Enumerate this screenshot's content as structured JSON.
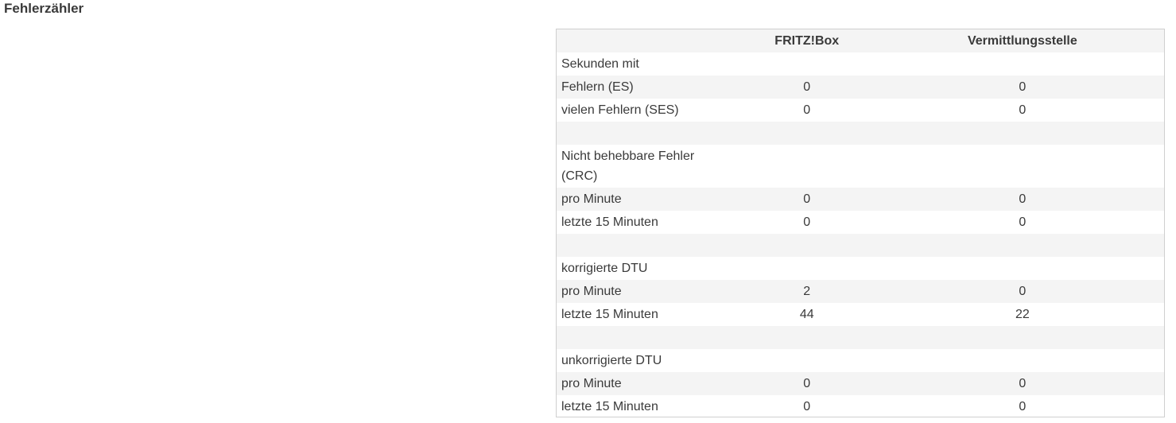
{
  "section_title": "Fehlerzähler",
  "columns": {
    "fritzbox": "FRITZ!Box",
    "vermittlungsstelle": "Vermittlungsstelle"
  },
  "rows": [
    {
      "label": "Sekunden mit",
      "fritzbox": "",
      "vermittlungsstelle": ""
    },
    {
      "label": "Fehlern (ES)",
      "fritzbox": "0",
      "vermittlungsstelle": "0"
    },
    {
      "label": "vielen Fehlern (SES)",
      "fritzbox": "0",
      "vermittlungsstelle": "0"
    },
    {
      "label": "",
      "fritzbox": "",
      "vermittlungsstelle": ""
    },
    {
      "label": "Nicht behebbare Fehler (CRC)",
      "fritzbox": "",
      "vermittlungsstelle": ""
    },
    {
      "label": "pro Minute",
      "fritzbox": "0",
      "vermittlungsstelle": "0"
    },
    {
      "label": "letzte 15 Minuten",
      "fritzbox": "0",
      "vermittlungsstelle": "0"
    },
    {
      "label": "",
      "fritzbox": "",
      "vermittlungsstelle": ""
    },
    {
      "label": "korrigierte DTU",
      "fritzbox": "",
      "vermittlungsstelle": ""
    },
    {
      "label": "pro Minute",
      "fritzbox": "2",
      "vermittlungsstelle": "0"
    },
    {
      "label": "letzte 15 Minuten",
      "fritzbox": "44",
      "vermittlungsstelle": "22"
    },
    {
      "label": "",
      "fritzbox": "",
      "vermittlungsstelle": ""
    },
    {
      "label": "unkorrigierte DTU",
      "fritzbox": "",
      "vermittlungsstelle": ""
    },
    {
      "label": "pro Minute",
      "fritzbox": "0",
      "vermittlungsstelle": "0"
    },
    {
      "label": "letzte 15 Minuten",
      "fritzbox": "0",
      "vermittlungsstelle": "0"
    }
  ]
}
